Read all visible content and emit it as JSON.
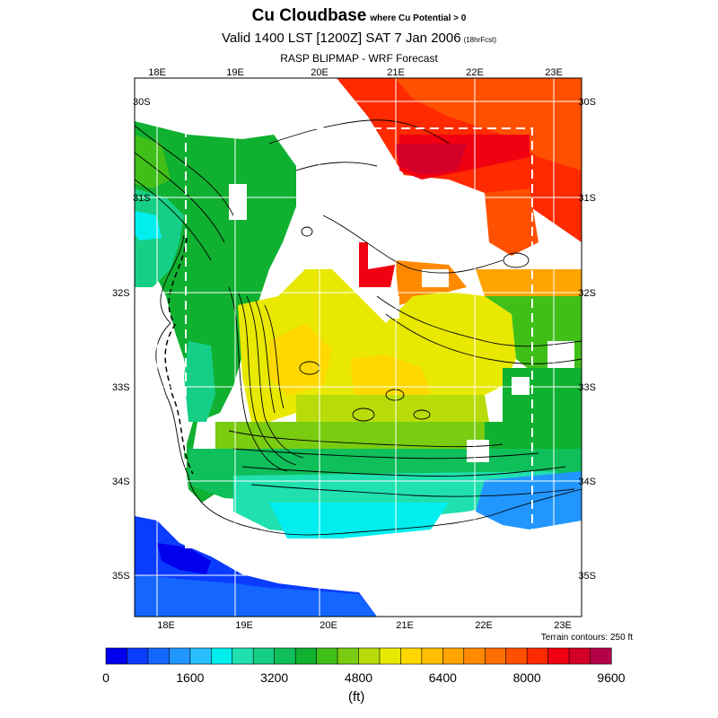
{
  "title": {
    "main": "Cu Cloudbase",
    "qualifier": "where Cu Potential > 0",
    "valid": "Valid 1400 LST [1200Z] SAT 7 Jan 2006",
    "forecast_tag": "(18hrFcst)",
    "model": "RASP BLIPMAP - WRF Forecast"
  },
  "map": {
    "lon_labels_top": [
      "18E",
      "19E",
      "20E",
      "21E",
      "22E",
      "23E"
    ],
    "lon_labels_bottom": [
      "18E",
      "19E",
      "20E",
      "21E",
      "22E",
      "23E"
    ],
    "lat_labels_left": [
      "30S",
      "31S",
      "32S",
      "33S",
      "34S",
      "35S"
    ],
    "lat_labels_right": [
      "30S",
      "31S",
      "32S",
      "33S",
      "34S",
      "35S"
    ],
    "terrain_note": "Terrain contours: 250 ft"
  },
  "colorbar": {
    "tick_labels": [
      "0",
      "1600",
      "3200",
      "4800",
      "6400",
      "8000",
      "9600"
    ],
    "unit": "(ft)",
    "colors": [
      "#0000ee",
      "#0a3cff",
      "#1466ff",
      "#2196ff",
      "#29bfff",
      "#00eeee",
      "#20e0b0",
      "#16cf86",
      "#0fbf5a",
      "#10b030",
      "#40bf18",
      "#7acc10",
      "#b8dc0a",
      "#e8e800",
      "#ffd800",
      "#ffbf00",
      "#ffa400",
      "#ff8a00",
      "#ff6e00",
      "#ff5000",
      "#ff2a00",
      "#f00010",
      "#d40028",
      "#b5004a"
    ]
  }
}
